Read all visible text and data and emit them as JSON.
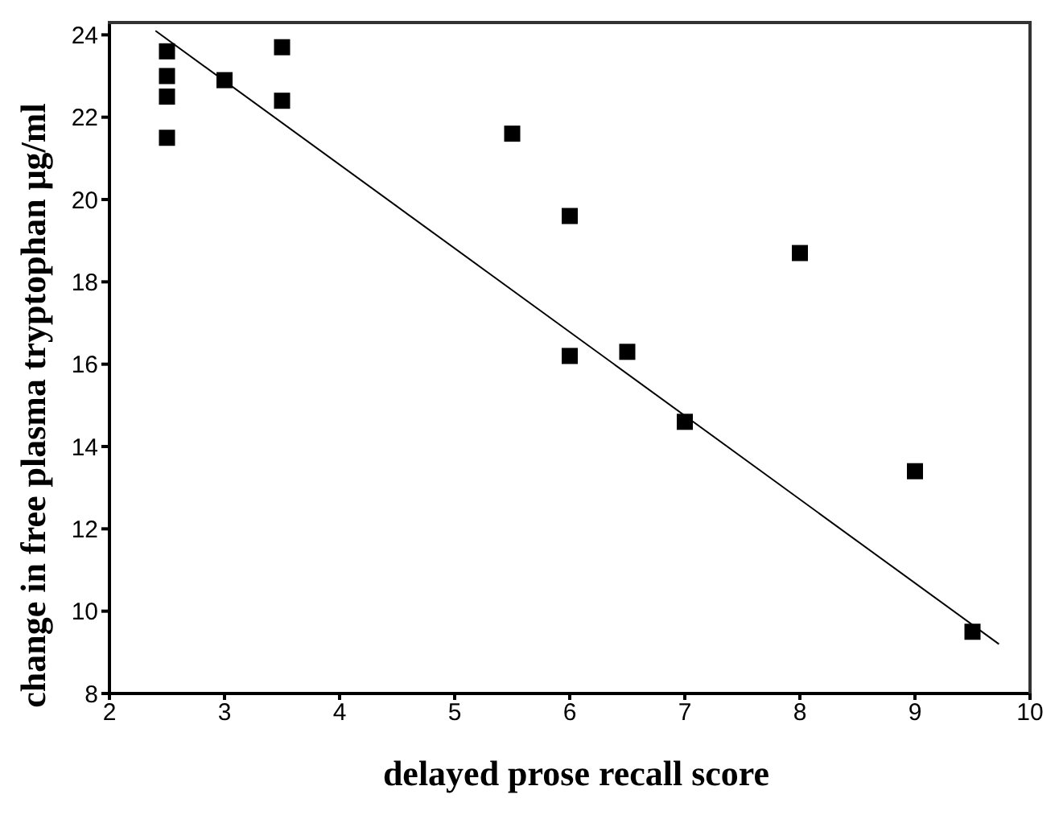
{
  "chart_data": {
    "type": "scatter",
    "xlabel": "delayed prose recall score",
    "ylabel": "change in free plasma tryptophan μg/ml",
    "xlim": [
      2,
      10
    ],
    "xticks": [
      2,
      3,
      4,
      5,
      6,
      7,
      8,
      9,
      10
    ],
    "ylim": [
      8,
      24.3
    ],
    "yticks": [
      8,
      10,
      12,
      14,
      16,
      18,
      20,
      22,
      24
    ],
    "marker": "square",
    "series": [
      {
        "color": "#000000",
        "x": [
          2.5,
          2.5,
          2.5,
          2.5,
          3,
          3.5,
          3.5,
          5.5,
          6,
          6,
          6.5,
          7,
          8,
          9,
          9.5
        ],
        "values": [
          23.6,
          23.0,
          22.5,
          21.5,
          22.9,
          23.7,
          22.4,
          21.6,
          19.6,
          16.2,
          16.3,
          14.6,
          18.7,
          13.4,
          9.5
        ]
      },
      {
        "type": "line",
        "color": "#000000",
        "marker": "none",
        "x": [
          2.4,
          9.73
        ],
        "values": [
          24.1,
          9.2
        ]
      }
    ]
  }
}
